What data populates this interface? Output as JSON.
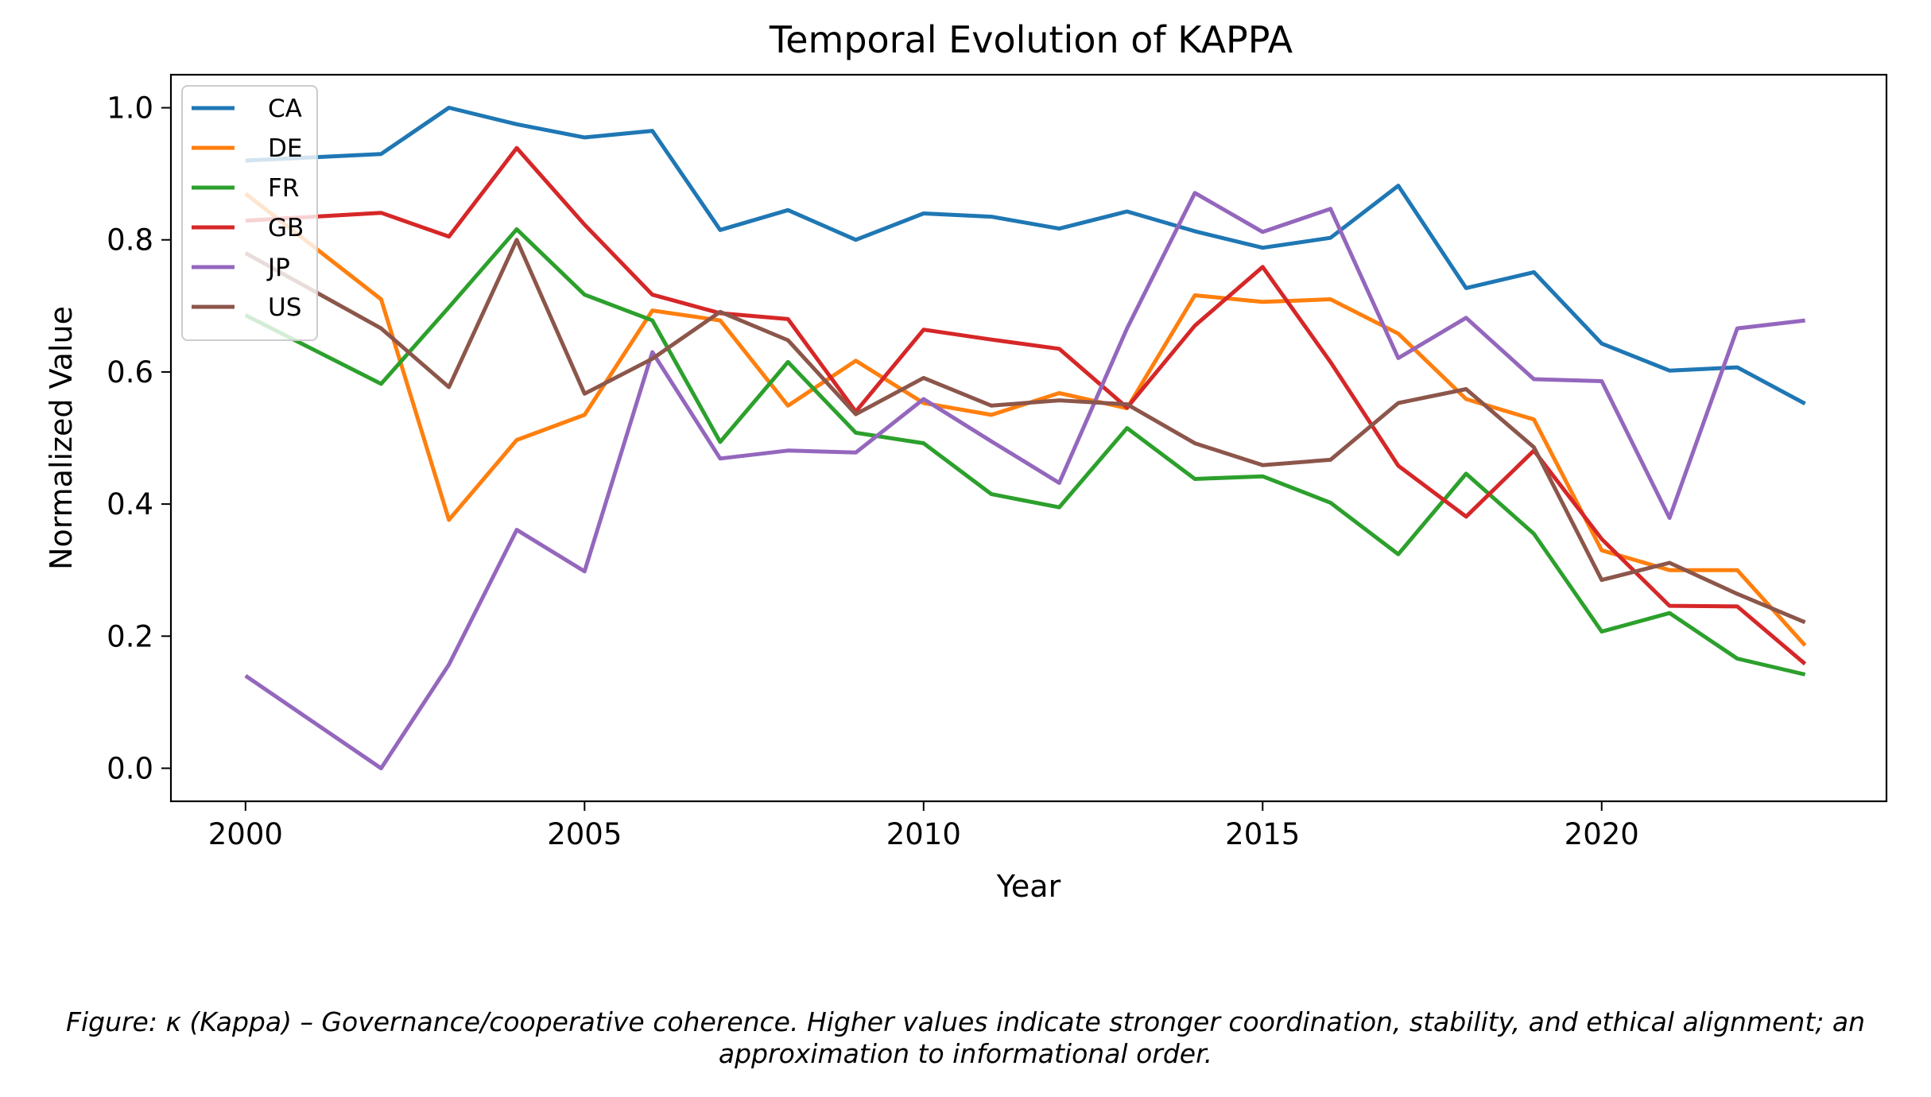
{
  "chart_data": {
    "type": "line",
    "title": "Temporal Evolution of KAPPA",
    "xlabel": "Year",
    "ylabel": "Normalized Value",
    "xlim": [
      1998.9,
      2024.2
    ],
    "ylim": [
      -0.05,
      1.05
    ],
    "xticks": [
      2000,
      2005,
      2010,
      2015,
      2020
    ],
    "yticks": [
      0.0,
      0.2,
      0.4,
      0.6,
      0.8,
      1.0
    ],
    "ytick_labels": [
      "0.0",
      "0.2",
      "0.4",
      "0.6",
      "0.8",
      "1.0"
    ],
    "grid": false,
    "legend_position": "top-left",
    "series": [
      {
        "name": "CA",
        "color": "#1f77b4",
        "x": [
          2000,
          2001,
          2002,
          2003,
          2004,
          2005,
          2006,
          2007,
          2008,
          2009,
          2010,
          2011,
          2012,
          2013,
          2014,
          2015,
          2016,
          2017,
          2018,
          2019,
          2020,
          2021,
          2022,
          2023
        ],
        "y": [
          0.92,
          0.925,
          0.93,
          1.0,
          0.975,
          0.955,
          0.965,
          0.815,
          0.845,
          0.8,
          0.84,
          0.835,
          0.817,
          0.843,
          0.813,
          0.788,
          0.803,
          0.882,
          0.727,
          0.751,
          0.643,
          0.602,
          0.607,
          0.552
        ]
      },
      {
        "name": "DE",
        "color": "#ff7f0e",
        "x": [
          2000,
          2001,
          2002,
          2003,
          2004,
          2005,
          2006,
          2007,
          2008,
          2009,
          2010,
          2011,
          2012,
          2013,
          2014,
          2015,
          2016,
          2017,
          2018,
          2019,
          2020,
          2021,
          2022,
          2023
        ],
        "y": [
          0.87,
          0.79,
          0.71,
          0.376,
          0.497,
          0.535,
          0.693,
          0.678,
          0.549,
          0.617,
          0.553,
          0.535,
          0.568,
          0.545,
          0.716,
          0.706,
          0.71,
          0.658,
          0.559,
          0.528,
          0.33,
          0.3,
          0.3,
          0.186
        ]
      },
      {
        "name": "FR",
        "color": "#2ca02c",
        "x": [
          2000,
          2001,
          2002,
          2003,
          2004,
          2005,
          2006,
          2007,
          2008,
          2009,
          2010,
          2011,
          2012,
          2013,
          2014,
          2015,
          2016,
          2017,
          2018,
          2019,
          2020,
          2021,
          2022,
          2023
        ],
        "y": [
          0.686,
          0.634,
          0.582,
          0.698,
          0.816,
          0.717,
          0.678,
          0.494,
          0.615,
          0.508,
          0.492,
          0.415,
          0.395,
          0.515,
          0.438,
          0.442,
          0.402,
          0.324,
          0.446,
          0.355,
          0.207,
          0.235,
          0.166,
          0.142
        ]
      },
      {
        "name": "GB",
        "color": "#d62728",
        "x": [
          2000,
          2001,
          2002,
          2003,
          2004,
          2005,
          2006,
          2007,
          2008,
          2009,
          2010,
          2011,
          2012,
          2013,
          2014,
          2015,
          2016,
          2017,
          2018,
          2019,
          2020,
          2021,
          2022,
          2023
        ],
        "y": [
          0.829,
          0.835,
          0.841,
          0.805,
          0.939,
          0.823,
          0.717,
          0.689,
          0.68,
          0.54,
          0.664,
          0.649,
          0.635,
          0.546,
          0.67,
          0.759,
          0.615,
          0.458,
          0.381,
          0.481,
          0.347,
          0.246,
          0.245,
          0.158
        ]
      },
      {
        "name": "JP",
        "color": "#9467bd",
        "x": [
          2000,
          2001,
          2002,
          2003,
          2004,
          2005,
          2006,
          2007,
          2008,
          2009,
          2010,
          2011,
          2012,
          2013,
          2014,
          2015,
          2016,
          2017,
          2018,
          2019,
          2020,
          2021,
          2022,
          2023
        ],
        "y": [
          0.14,
          0.07,
          0.0,
          0.157,
          0.361,
          0.298,
          0.63,
          0.469,
          0.481,
          0.478,
          0.559,
          0.495,
          0.432,
          0.666,
          0.871,
          0.812,
          0.847,
          0.621,
          0.682,
          0.589,
          0.586,
          0.379,
          0.666,
          0.678
        ]
      },
      {
        "name": "US",
        "color": "#8c564b",
        "x": [
          2000,
          2001,
          2002,
          2003,
          2004,
          2005,
          2006,
          2007,
          2008,
          2009,
          2010,
          2011,
          2012,
          2013,
          2014,
          2015,
          2016,
          2017,
          2018,
          2019,
          2020,
          2021,
          2022,
          2023
        ],
        "y": [
          0.78,
          0.723,
          0.666,
          0.577,
          0.8,
          0.567,
          0.62,
          0.691,
          0.648,
          0.536,
          0.591,
          0.549,
          0.557,
          0.551,
          0.492,
          0.459,
          0.467,
          0.553,
          0.574,
          0.486,
          0.285,
          0.311,
          0.264,
          0.221
        ]
      }
    ]
  },
  "caption": {
    "line1": "Figure: κ (Kappa) – Governance/cooperative coherence. Higher values indicate stronger coordination, stability, and ethical alignment; an",
    "line2": "approximation to informational order."
  }
}
